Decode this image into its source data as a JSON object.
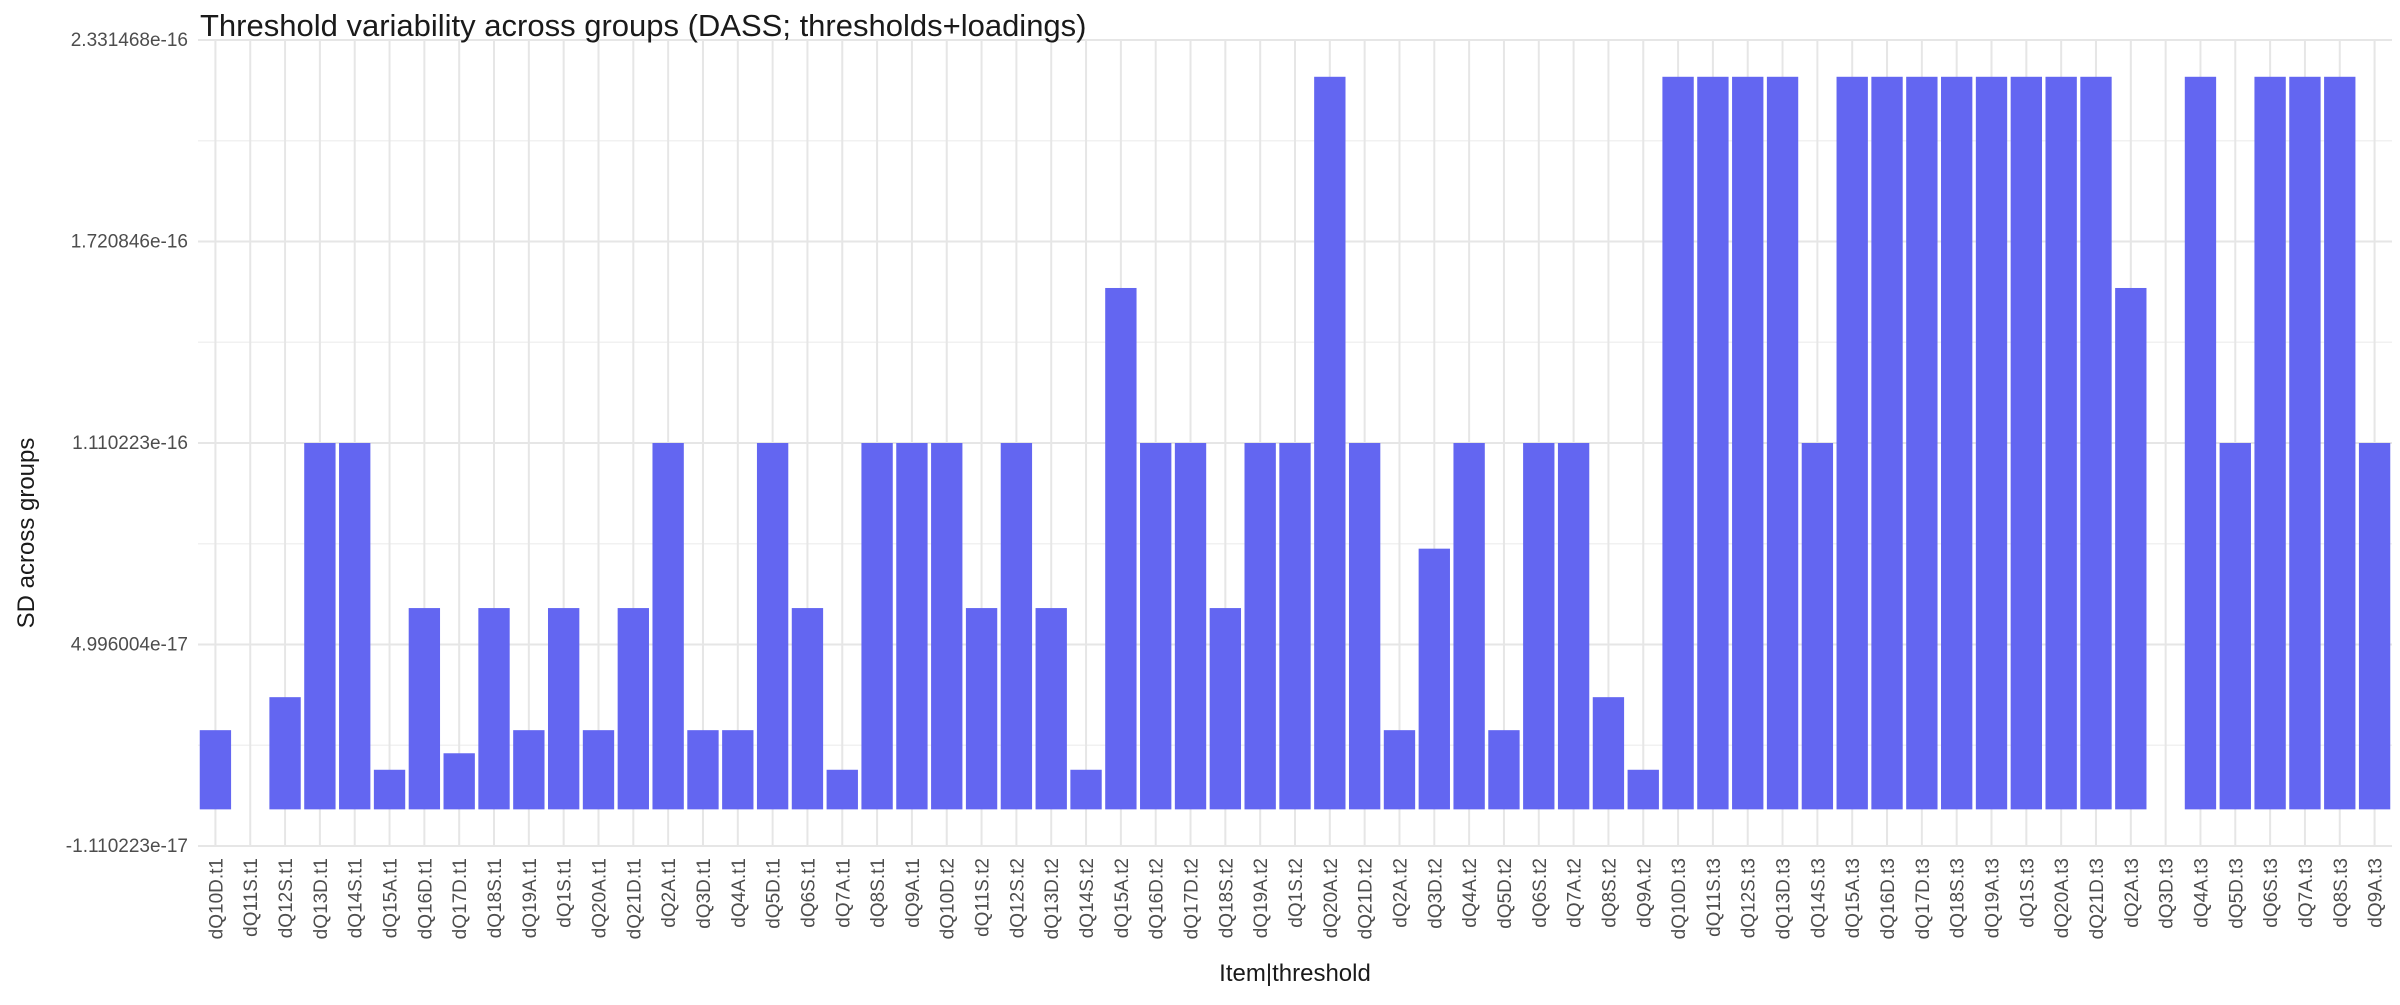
{
  "chart_data": {
    "type": "bar",
    "title": "Threshold variability across groups (DASS; thresholds+loadings)",
    "xlabel": "Item|threshold",
    "ylabel": "SD across groups",
    "ylim": [
      -1.110223e-17,
      2.331468e-16
    ],
    "yticks": [
      -1.110223e-17,
      4.996004e-17,
      1.110223e-16,
      1.720846e-16,
      2.331468e-16
    ],
    "ytick_labels": [
      "-1.110223e-17",
      "4.996004e-17",
      "1.110223e-16",
      "1.720846e-16",
      "2.331468e-16"
    ],
    "grid": true,
    "legend": "none",
    "bar_color": "#6366F1",
    "categories": [
      "dQ10D.t1",
      "dQ11S.t1",
      "dQ12S.t1",
      "dQ13D.t1",
      "dQ14S.t1",
      "dQ15A.t1",
      "dQ16D.t1",
      "dQ17D.t1",
      "dQ18S.t1",
      "dQ19A.t1",
      "dQ1S.t1",
      "dQ20A.t1",
      "dQ21D.t1",
      "dQ2A.t1",
      "dQ3D.t1",
      "dQ4A.t1",
      "dQ5D.t1",
      "dQ6S.t1",
      "dQ7A.t1",
      "dQ8S.t1",
      "dQ9A.t1",
      "dQ10D.t2",
      "dQ11S.t2",
      "dQ12S.t2",
      "dQ13D.t2",
      "dQ14S.t2",
      "dQ15A.t2",
      "dQ16D.t2",
      "dQ17D.t2",
      "dQ18S.t2",
      "dQ19A.t2",
      "dQ1S.t2",
      "dQ20A.t2",
      "dQ21D.t2",
      "dQ2A.t2",
      "dQ3D.t2",
      "dQ4A.t2",
      "dQ5D.t2",
      "dQ6S.t2",
      "dQ7A.t2",
      "dQ8S.t2",
      "dQ9A.t2",
      "dQ10D.t3",
      "dQ11S.t3",
      "dQ12S.t3",
      "dQ13D.t3",
      "dQ14S.t3",
      "dQ15A.t3",
      "dQ16D.t3",
      "dQ17D.t3",
      "dQ18S.t3",
      "dQ19A.t3",
      "dQ1S.t3",
      "dQ20A.t3",
      "dQ21D.t3",
      "dQ2A.t3",
      "dQ3D.t3",
      "dQ4A.t3",
      "dQ5D.t3",
      "dQ6S.t3",
      "dQ7A.t3",
      "dQ8S.t3",
      "dQ9A.t3"
    ],
    "values": [
      2.4e-17,
      0,
      3.4e-17,
      1.110223e-16,
      1.110223e-16,
      1.2e-17,
      6.1e-17,
      1.7e-17,
      6.1e-17,
      2.4e-17,
      6.1e-17,
      2.4e-17,
      6.1e-17,
      1.110223e-16,
      2.4e-17,
      2.4e-17,
      1.110223e-16,
      6.1e-17,
      1.2e-17,
      1.110223e-16,
      1.110223e-16,
      1.110223e-16,
      6.1e-17,
      1.110223e-16,
      6.1e-17,
      1.2e-17,
      1.58e-16,
      1.110223e-16,
      1.110223e-16,
      6.1e-17,
      1.110223e-16,
      1.110223e-16,
      2.22e-16,
      1.110223e-16,
      2.4e-17,
      7.9e-17,
      1.110223e-16,
      2.4e-17,
      1.110223e-16,
      1.110223e-16,
      3.4e-17,
      1.2e-17,
      2.22e-16,
      2.22e-16,
      2.22e-16,
      2.22e-16,
      1.110223e-16,
      2.22e-16,
      2.22e-16,
      2.22e-16,
      2.22e-16,
      2.22e-16,
      2.22e-16,
      2.22e-16,
      2.22e-16,
      1.58e-16,
      0,
      2.22e-16,
      1.110223e-16,
      2.22e-16,
      2.22e-16,
      2.22e-16,
      1.110223e-16
    ]
  }
}
